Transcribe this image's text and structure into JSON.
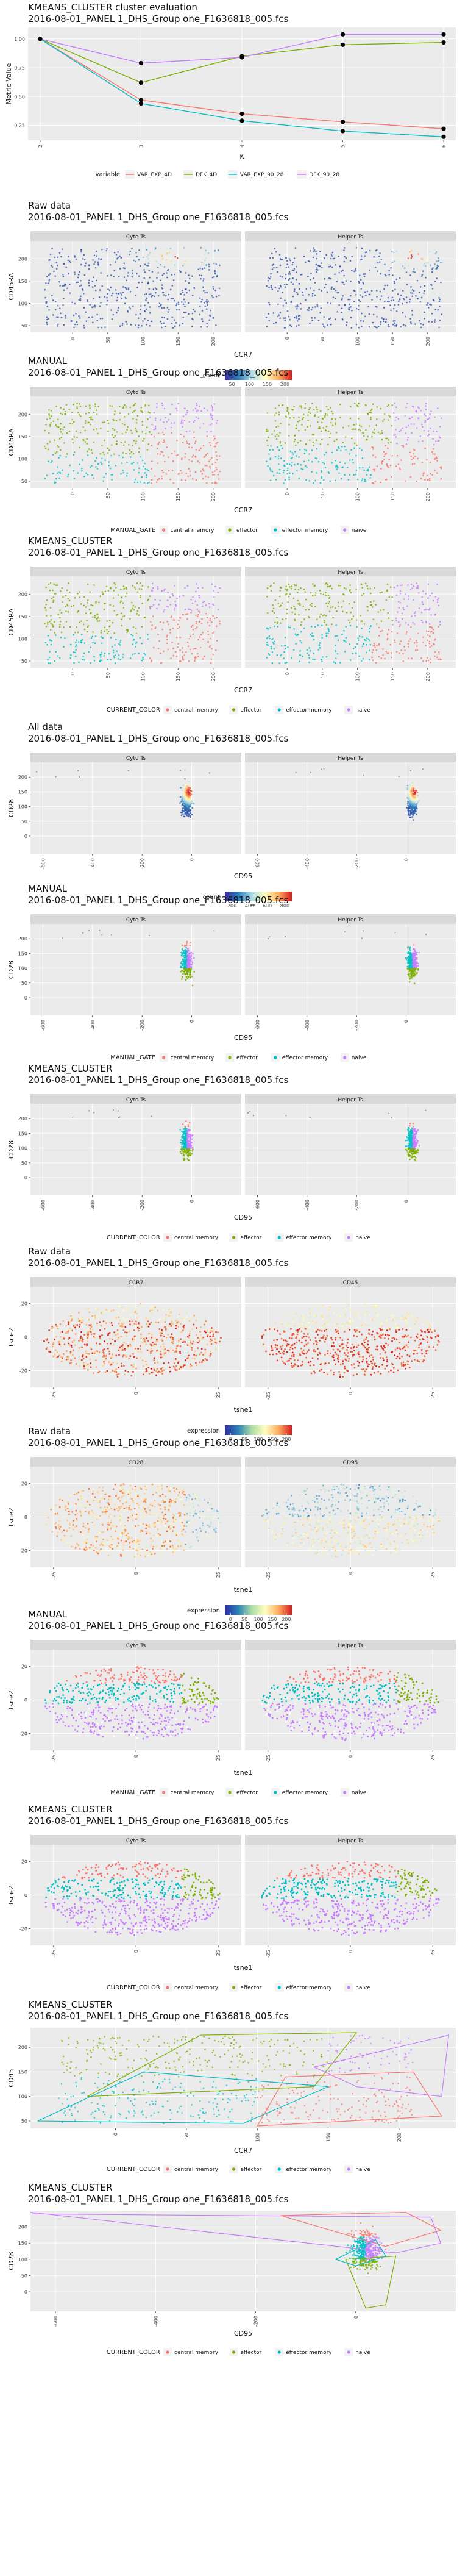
{
  "chart_data": [
    {
      "type": "line",
      "title": "KMEANS_CLUSTER cluster evaluation",
      "subtitle": "2016-08-01_PANEL 1_DHS_Group one_F1636818_005.fcs",
      "xlabel": "K",
      "ylabel": "Metric Value",
      "x": [
        2,
        3,
        4,
        5,
        6
      ],
      "xticks": [
        "2",
        "3",
        "4",
        "5",
        "6"
      ],
      "yticks": [
        0.25,
        0.5,
        0.75,
        1.0
      ],
      "ylim": [
        0.12,
        1.1
      ],
      "legend_title": "variable",
      "series": [
        {
          "name": "VAR_EXP_4D",
          "color": "#F8766D",
          "values": [
            1.0,
            0.47,
            0.35,
            0.28,
            0.22
          ]
        },
        {
          "name": "DFK_4D",
          "color": "#7CAE00",
          "values": [
            1.0,
            0.62,
            0.85,
            0.95,
            0.97
          ]
        },
        {
          "name": "VAR_EXP_90_28",
          "color": "#00BFC4",
          "values": [
            1.0,
            0.44,
            0.29,
            0.2,
            0.15
          ]
        },
        {
          "name": "DFK_90_28",
          "color": "#C77CFF",
          "values": [
            1.0,
            0.79,
            0.84,
            1.04,
            1.04
          ]
        }
      ]
    },
    {
      "type": "scatter",
      "panels_per_row": 2,
      "title": "Raw data",
      "subtitle": "2016-08-01_PANEL 1_DHS_Group one_F1636818_005.fcs",
      "xlabel": "CCR7",
      "ylabel": "CD45RA",
      "facets": [
        "Cyto Ts",
        "Helper Ts"
      ],
      "xlim": [
        -60,
        240
      ],
      "ylim": [
        35,
        240
      ],
      "xticks": [
        0,
        50,
        100,
        150,
        200
      ],
      "yticks": [
        50,
        100,
        150,
        200
      ],
      "legend_title": "count",
      "colorbar": {
        "colors": [
          "#3a2ca0",
          "#2c7bb6",
          "#abd9e9",
          "#ffffbf",
          "#fdae61",
          "#d7191c"
        ],
        "ticks": [
          50,
          100,
          150,
          200
        ]
      }
    },
    {
      "type": "scatter",
      "panels_per_row": 2,
      "title": "MANUAL",
      "subtitle": "2016-08-01_PANEL 1_DHS_Group one_F1636818_005.fcs",
      "xlabel": "CCR7",
      "ylabel": "CD45RA",
      "facets": [
        "Cyto Ts",
        "Helper Ts"
      ],
      "xlim": [
        -60,
        240
      ],
      "ylim": [
        35,
        240
      ],
      "xticks": [
        0,
        50,
        100,
        150,
        200
      ],
      "yticks": [
        50,
        100,
        150,
        200
      ],
      "legend_title": "MANUAL_GATE",
      "legend": [
        {
          "name": "central memory",
          "color": "#F8766D"
        },
        {
          "name": "effector",
          "color": "#7CAE00"
        },
        {
          "name": "effector memory",
          "color": "#00BFC4"
        },
        {
          "name": "naive",
          "color": "#C77CFF"
        }
      ]
    },
    {
      "type": "scatter",
      "panels_per_row": 2,
      "title": "KMEANS_CLUSTER",
      "subtitle": "2016-08-01_PANEL 1_DHS_Group one_F1636818_005.fcs",
      "xlabel": "CCR7",
      "ylabel": "CD45RA",
      "facets": [
        "Cyto Ts",
        "Helper Ts"
      ],
      "xlim": [
        -60,
        240
      ],
      "ylim": [
        35,
        240
      ],
      "xticks": [
        0,
        50,
        100,
        150,
        200
      ],
      "yticks": [
        50,
        100,
        150,
        200
      ],
      "legend_title": "CURRENT_COLOR",
      "legend": [
        {
          "name": "central memory",
          "color": "#F8766D"
        },
        {
          "name": "effector",
          "color": "#7CAE00"
        },
        {
          "name": "effector memory",
          "color": "#00BFC4"
        },
        {
          "name": "naive",
          "color": "#C77CFF"
        }
      ]
    },
    {
      "type": "scatter",
      "panels_per_row": 2,
      "title": "All data",
      "subtitle": "2016-08-01_PANEL 1_DHS_Group one_F1636818_005.fcs",
      "xlabel": "CD95",
      "ylabel": "CD28",
      "facets": [
        "Cyto Ts",
        "Helper Ts"
      ],
      "xlim": [
        -650,
        200
      ],
      "ylim": [
        -60,
        250
      ],
      "xticks": [
        -600,
        -400,
        -200,
        0
      ],
      "yticks": [
        0,
        50,
        100,
        150,
        200
      ],
      "legend_title": "count",
      "colorbar": {
        "colors": [
          "#3a2ca0",
          "#2c7bb6",
          "#abd9e9",
          "#ffffbf",
          "#fdae61",
          "#d7191c"
        ],
        "ticks": [
          200,
          400,
          600,
          800
        ]
      }
    },
    {
      "type": "scatter",
      "panels_per_row": 2,
      "title": "MANUAL",
      "subtitle": "2016-08-01_PANEL 1_DHS_Group one_F1636818_005.fcs",
      "xlabel": "CD95",
      "ylabel": "CD28",
      "facets": [
        "Cyto Ts",
        "Helper Ts"
      ],
      "xlim": [
        -650,
        200
      ],
      "ylim": [
        -60,
        250
      ],
      "xticks": [
        -600,
        -400,
        -200,
        0
      ],
      "yticks": [
        0,
        50,
        100,
        150,
        200
      ],
      "legend_title": "MANUAL_GATE",
      "legend": [
        {
          "name": "central memory",
          "color": "#F8766D"
        },
        {
          "name": "effector",
          "color": "#7CAE00"
        },
        {
          "name": "effector memory",
          "color": "#00BFC4"
        },
        {
          "name": "naive",
          "color": "#C77CFF"
        }
      ]
    },
    {
      "type": "scatter",
      "panels_per_row": 2,
      "title": "KMEANS_CLUSTER",
      "subtitle": "2016-08-01_PANEL 1_DHS_Group one_F1636818_005.fcs",
      "xlabel": "CD95",
      "ylabel": "CD28",
      "facets": [
        "Cyto Ts",
        "Helper Ts"
      ],
      "xlim": [
        -650,
        200
      ],
      "ylim": [
        -60,
        250
      ],
      "xticks": [
        -600,
        -400,
        -200,
        0
      ],
      "yticks": [
        0,
        50,
        100,
        150,
        200
      ],
      "legend_title": "CURRENT_COLOR",
      "legend": [
        {
          "name": "central memory",
          "color": "#F8766D"
        },
        {
          "name": "effector",
          "color": "#7CAE00"
        },
        {
          "name": "effector memory",
          "color": "#00BFC4"
        },
        {
          "name": "naive",
          "color": "#C77CFF"
        }
      ]
    },
    {
      "type": "heatmap",
      "panels_per_row": 2,
      "title": "Raw data",
      "subtitle": "2016-08-01_PANEL 1_DHS_Group one_F1636818_005.fcs",
      "xlabel": "tsne1",
      "ylabel": "tsne2",
      "facets": [
        "CCR7",
        "CD45"
      ],
      "xlim": [
        -32,
        32
      ],
      "ylim": [
        -30,
        30
      ],
      "xticks": [
        -25,
        0,
        25
      ],
      "yticks": [
        -20,
        0,
        20
      ],
      "legend_title": "expression",
      "colorbar": {
        "colors": [
          "#2c2ca0",
          "#2b83ba",
          "#abdda4",
          "#ffffbf",
          "#fdae61",
          "#d7191c"
        ],
        "ticks": [
          0,
          50,
          100,
          150,
          200
        ]
      }
    },
    {
      "type": "heatmap",
      "panels_per_row": 2,
      "title": "Raw data",
      "subtitle": "2016-08-01_PANEL 1_DHS_Group one_F1636818_005.fcs",
      "xlabel": "tsne1",
      "ylabel": "tsne2",
      "facets": [
        "CD28",
        "CD95"
      ],
      "xlim": [
        -32,
        32
      ],
      "ylim": [
        -30,
        30
      ],
      "xticks": [
        -25,
        0,
        25
      ],
      "yticks": [
        -20,
        0,
        20
      ],
      "legend_title": "expression",
      "colorbar": {
        "colors": [
          "#2c2ca0",
          "#2b83ba",
          "#abdda4",
          "#ffffbf",
          "#fdae61",
          "#d7191c"
        ],
        "ticks": [
          0,
          50,
          100,
          150,
          200
        ]
      }
    },
    {
      "type": "scatter",
      "panels_per_row": 2,
      "title": "MANUAL",
      "subtitle": "2016-08-01_PANEL 1_DHS_Group one_F1636818_005.fcs",
      "xlabel": "tsne1",
      "ylabel": "tsne2",
      "facets": [
        "Cyto Ts",
        "Helper Ts"
      ],
      "xlim": [
        -32,
        32
      ],
      "ylim": [
        -30,
        30
      ],
      "xticks": [
        -25,
        0,
        25
      ],
      "yticks": [
        -20,
        0,
        20
      ],
      "legend_title": "MANUAL_GATE",
      "legend": [
        {
          "name": "central memory",
          "color": "#F8766D"
        },
        {
          "name": "effector",
          "color": "#7CAE00"
        },
        {
          "name": "effector memory",
          "color": "#00BFC4"
        },
        {
          "name": "naive",
          "color": "#C77CFF"
        }
      ]
    },
    {
      "type": "scatter",
      "panels_per_row": 2,
      "title": "KMEANS_CLUSTER",
      "subtitle": "2016-08-01_PANEL 1_DHS_Group one_F1636818_005.fcs",
      "xlabel": "tsne1",
      "ylabel": "tsne2",
      "facets": [
        "Cyto Ts",
        "Helper Ts"
      ],
      "xlim": [
        -32,
        32
      ],
      "ylim": [
        -30,
        30
      ],
      "xticks": [
        -25,
        0,
        25
      ],
      "yticks": [
        -20,
        0,
        20
      ],
      "legend_title": "CURRENT_COLOR",
      "legend": [
        {
          "name": "central memory",
          "color": "#F8766D"
        },
        {
          "name": "effector",
          "color": "#7CAE00"
        },
        {
          "name": "effector memory",
          "color": "#00BFC4"
        },
        {
          "name": "naive",
          "color": "#C77CFF"
        }
      ]
    },
    {
      "type": "scatter",
      "panels_per_row": 1,
      "title": "KMEANS_CLUSTER",
      "subtitle": "2016-08-01_PANEL 1_DHS_Group one_F1636818_005.fcs",
      "xlabel": "CCR7",
      "ylabel": "CD45",
      "facets": [],
      "xlim": [
        -60,
        240
      ],
      "ylim": [
        35,
        240
      ],
      "xticks": [
        0,
        50,
        100,
        150,
        200
      ],
      "yticks": [
        50,
        100,
        150,
        200
      ],
      "legend_title": "CURRENT_COLOR",
      "legend": [
        {
          "name": "central memory",
          "color": "#F8766D"
        },
        {
          "name": "effector",
          "color": "#7CAE00"
        },
        {
          "name": "effector memory",
          "color": "#00BFC4"
        },
        {
          "name": "naive",
          "color": "#C77CFF"
        }
      ]
    },
    {
      "type": "scatter",
      "panels_per_row": 1,
      "title": "KMEANS_CLUSTER",
      "subtitle": "2016-08-01_PANEL 1_DHS_Group one_F1636818_005.fcs",
      "xlabel": "CD95",
      "ylabel": "CD28",
      "facets": [],
      "xlim": [
        -650,
        200
      ],
      "ylim": [
        -60,
        250
      ],
      "xticks": [
        -600,
        -400,
        -200,
        0
      ],
      "yticks": [
        0,
        50,
        100,
        150,
        200
      ],
      "legend_title": "CURRENT_COLOR",
      "legend": [
        {
          "name": "central memory",
          "color": "#F8766D"
        },
        {
          "name": "effector",
          "color": "#7CAE00"
        },
        {
          "name": "effector memory",
          "color": "#00BFC4"
        },
        {
          "name": "naive",
          "color": "#C77CFF"
        }
      ]
    }
  ]
}
